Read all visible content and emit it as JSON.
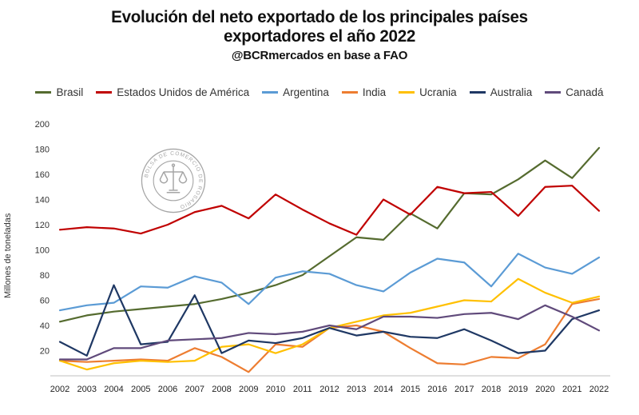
{
  "header": {
    "title_line1": "Evolución del neto exportado de los principales países",
    "title_line2": "exportadores el año 2022",
    "attribution": "@BCRmercados en base a FAO"
  },
  "watermark": {
    "text": "BOLSA DE COMERCIO DE ROSARIO"
  },
  "chart_data": {
    "type": "line",
    "title": "Evolución del neto exportado de los principales países exportadores el año 2022",
    "subtitle": "@BCRmercados en base a FAO",
    "xlabel": "",
    "ylabel": "Millones de toneladas",
    "ylim": [
      0,
      200
    ],
    "ytick_step": 20,
    "grid": false,
    "legend_position": "top",
    "categories": [
      "2002",
      "2003",
      "2004",
      "2005",
      "2006",
      "2007",
      "2008",
      "2009",
      "2010",
      "2011",
      "2012",
      "2013",
      "2014",
      "2015",
      "2016",
      "2017",
      "2018",
      "2019",
      "2020",
      "2021",
      "2022"
    ],
    "series": [
      {
        "name": "Brasil",
        "color": "#556b2f",
        "values": [
          43,
          48,
          51,
          53,
          55,
          57,
          61,
          66,
          72,
          80,
          95,
          110,
          108,
          129,
          117,
          145,
          144,
          156,
          171,
          157,
          181
        ]
      },
      {
        "name": "Estados Unidos de América",
        "color": "#c00000",
        "values": [
          116,
          118,
          117,
          113,
          120,
          130,
          135,
          125,
          144,
          132,
          121,
          112,
          140,
          128,
          150,
          145,
          146,
          127,
          150,
          151,
          131
        ]
      },
      {
        "name": "Argentina",
        "color": "#5b9bd5",
        "values": [
          52,
          56,
          58,
          71,
          70,
          79,
          74,
          57,
          78,
          83,
          81,
          72,
          67,
          82,
          93,
          90,
          71,
          97,
          86,
          81,
          94
        ]
      },
      {
        "name": "India",
        "color": "#ed7d31",
        "values": [
          12,
          11,
          12,
          13,
          12,
          22,
          15,
          3,
          25,
          23,
          38,
          40,
          35,
          22,
          10,
          9,
          15,
          14,
          25,
          57,
          61
        ]
      },
      {
        "name": "Ucrania",
        "color": "#ffc000",
        "values": [
          12,
          5,
          10,
          12,
          11,
          12,
          23,
          25,
          18,
          25,
          38,
          43,
          48,
          50,
          55,
          60,
          59,
          77,
          66,
          58,
          63
        ]
      },
      {
        "name": "Australia",
        "color": "#1f3864",
        "values": [
          27,
          16,
          72,
          25,
          27,
          64,
          18,
          28,
          26,
          30,
          38,
          32,
          35,
          31,
          30,
          37,
          28,
          18,
          20,
          45,
          52
        ]
      },
      {
        "name": "Canadá",
        "color": "#604a7b",
        "values": [
          13,
          13,
          22,
          22,
          28,
          29,
          30,
          34,
          33,
          35,
          40,
          37,
          47,
          47,
          46,
          49,
          50,
          45,
          56,
          47,
          36
        ]
      }
    ]
  }
}
